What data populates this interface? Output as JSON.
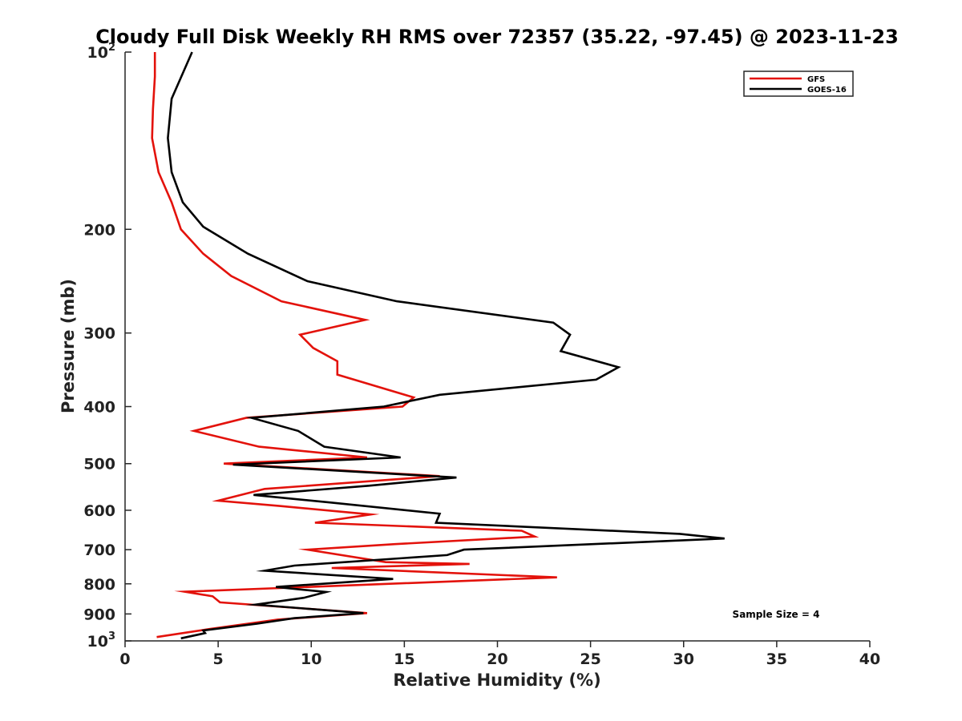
{
  "chart_data": {
    "type": "line",
    "title": "Cloudy Full Disk Weekly RH RMS over 72357 (35.22, -97.45) @ 2023-11-23",
    "xlabel": "Relative Humidity (%)",
    "ylabel": "Pressure (mb)",
    "xlim": [
      0,
      40
    ],
    "ylim": [
      1000,
      100
    ],
    "y_scale": "log",
    "y_reversed": true,
    "grid": false,
    "legend_position": "top-right",
    "x_ticks": [
      0,
      5,
      10,
      15,
      20,
      25,
      30,
      35,
      40
    ],
    "y_ticks": [
      {
        "value": 100,
        "label": "10",
        "sup": "2"
      },
      {
        "value": 200,
        "label": "200",
        "sup": ""
      },
      {
        "value": 300,
        "label": "300",
        "sup": ""
      },
      {
        "value": 400,
        "label": "400",
        "sup": ""
      },
      {
        "value": 500,
        "label": "500",
        "sup": ""
      },
      {
        "value": 600,
        "label": "600",
        "sup": ""
      },
      {
        "value": 700,
        "label": "700",
        "sup": ""
      },
      {
        "value": 800,
        "label": "800",
        "sup": ""
      },
      {
        "value": 900,
        "label": "900",
        "sup": ""
      },
      {
        "value": 1000,
        "label": "10",
        "sup": "3"
      }
    ],
    "series": [
      {
        "name": "GFS",
        "color": "#e3120b",
        "points": [
          [
            1.6,
            100
          ],
          [
            1.6,
            110
          ],
          [
            1.5,
            125
          ],
          [
            1.45,
            140
          ],
          [
            1.8,
            160
          ],
          [
            2.5,
            180
          ],
          [
            3.0,
            200
          ],
          [
            4.2,
            220
          ],
          [
            5.7,
            240
          ],
          [
            8.4,
            265
          ],
          [
            12.9,
            285
          ],
          [
            9.4,
            302
          ],
          [
            10.1,
            318
          ],
          [
            11.4,
            335
          ],
          [
            11.4,
            353
          ],
          [
            15.5,
            386
          ],
          [
            14.9,
            400
          ],
          [
            6.5,
            418
          ],
          [
            3.7,
            440
          ],
          [
            7.2,
            468
          ],
          [
            13.0,
            488
          ],
          [
            5.3,
            500
          ],
          [
            16.9,
            525
          ],
          [
            7.5,
            552
          ],
          [
            5.0,
            578
          ],
          [
            8.3,
            590
          ],
          [
            13.2,
            610
          ],
          [
            10.2,
            630
          ],
          [
            21.3,
            650
          ],
          [
            22.0,
            665
          ],
          [
            14.5,
            685
          ],
          [
            9.8,
            700
          ],
          [
            14.0,
            735
          ],
          [
            18.5,
            740
          ],
          [
            11.1,
            752
          ],
          [
            23.2,
            780
          ],
          [
            3.2,
            825
          ],
          [
            4.7,
            840
          ],
          [
            5.1,
            860
          ],
          [
            13.0,
            897
          ],
          [
            8.2,
            920
          ],
          [
            4.5,
            955
          ],
          [
            1.7,
            985
          ]
        ]
      },
      {
        "name": "GOES-16",
        "color": "#000000",
        "points": [
          [
            3.6,
            100
          ],
          [
            2.5,
            120
          ],
          [
            2.3,
            140
          ],
          [
            2.5,
            160
          ],
          [
            3.1,
            180
          ],
          [
            4.2,
            198
          ],
          [
            6.6,
            220
          ],
          [
            9.8,
            245
          ],
          [
            14.6,
            265
          ],
          [
            23.0,
            288
          ],
          [
            23.9,
            302
          ],
          [
            23.4,
            322
          ],
          [
            26.5,
            343
          ],
          [
            25.3,
            360
          ],
          [
            16.9,
            382
          ],
          [
            13.9,
            400
          ],
          [
            6.8,
            418
          ],
          [
            9.3,
            440
          ],
          [
            10.7,
            468
          ],
          [
            14.8,
            488
          ],
          [
            5.8,
            502
          ],
          [
            17.8,
            528
          ],
          [
            13.1,
            545
          ],
          [
            6.9,
            565
          ],
          [
            11.0,
            582
          ],
          [
            16.9,
            608
          ],
          [
            16.7,
            630
          ],
          [
            29.8,
            658
          ],
          [
            32.2,
            670
          ],
          [
            18.2,
            700
          ],
          [
            17.3,
            715
          ],
          [
            9.1,
            745
          ],
          [
            7.5,
            760
          ],
          [
            14.4,
            785
          ],
          [
            8.1,
            810
          ],
          [
            10.8,
            826
          ],
          [
            9.6,
            845
          ],
          [
            7.0,
            868
          ],
          [
            12.8,
            897
          ],
          [
            9.1,
            915
          ],
          [
            7.1,
            935
          ],
          [
            4.2,
            960
          ],
          [
            4.3,
            970
          ],
          [
            3.0,
            990
          ]
        ]
      }
    ],
    "annotation": "Sample Size = 4"
  }
}
